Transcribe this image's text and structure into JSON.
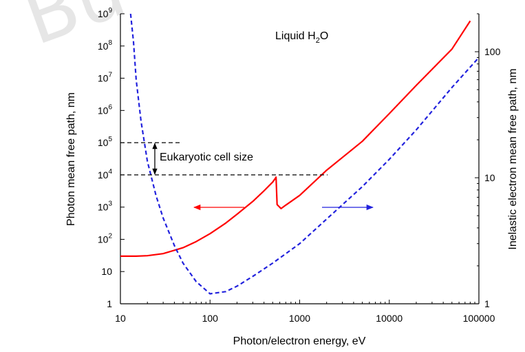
{
  "watermark": "Bu",
  "chart_data": {
    "type": "line",
    "title": "Liquid H₂O",
    "title_base": "Liquid H",
    "title_sub": "2",
    "title_tail": "O",
    "xlabel": "Photon/electron energy, eV",
    "ylabel_left": "Photon mean free path, nm",
    "ylabel_right": "Inelastic electron mean free path, nm",
    "x_scale": "log",
    "xlim": [
      10,
      100000
    ],
    "ylim_left": [
      1,
      1000000000
    ],
    "ylim_right": [
      1,
      200
    ],
    "x_ticks": [
      "10",
      "100",
      "1000",
      "10000",
      "100000"
    ],
    "x_tick_values": [
      10,
      100,
      1000,
      10000,
      100000
    ],
    "y_left_ticks": [
      {
        "v": 1,
        "b": "1",
        "e": ""
      },
      {
        "v": 10,
        "b": "10",
        "e": ""
      },
      {
        "v": 100,
        "b": "10",
        "e": "2"
      },
      {
        "v": 1000,
        "b": "10",
        "e": "3"
      },
      {
        "v": 10000,
        "b": "10",
        "e": "4"
      },
      {
        "v": 100000,
        "b": "10",
        "e": "5"
      },
      {
        "v": 1000000,
        "b": "10",
        "e": "6"
      },
      {
        "v": 10000000,
        "b": "10",
        "e": "7"
      },
      {
        "v": 100000000,
        "b": "10",
        "e": "8"
      },
      {
        "v": 1000000000,
        "b": "10",
        "e": "9"
      }
    ],
    "y_right_ticks": [
      {
        "v": 1,
        "label": "1"
      },
      {
        "v": 10,
        "label": "10"
      },
      {
        "v": 100,
        "label": "100"
      }
    ],
    "annotation": "Eukaryotic cell size",
    "cell_size_range": [
      10000,
      100000
    ],
    "series": [
      {
        "axis": "left",
        "color": "#ff0000",
        "style": "solid",
        "x": [
          10,
          15,
          20,
          30,
          50,
          70,
          100,
          150,
          200,
          300,
          400,
          500,
          530,
          545,
          560,
          620,
          700,
          1000,
          2000,
          5000,
          10000,
          20000,
          50000,
          80000
        ],
        "y": [
          30,
          30,
          31,
          36,
          55,
          85,
          150,
          320,
          600,
          1500,
          3200,
          6000,
          7500,
          8500,
          1200,
          900,
          1150,
          2300,
          14000,
          110000,
          800000,
          6000000,
          80000000,
          600000000
        ]
      },
      {
        "axis": "right",
        "color": "#2222dd",
        "style": "dashed",
        "x": [
          13,
          14,
          15,
          17,
          20,
          25,
          30,
          40,
          50,
          70,
          100,
          150,
          200,
          300,
          500,
          1000,
          2000,
          5000,
          10000,
          20000,
          50000,
          100000
        ],
        "y": [
          200,
          120,
          60,
          28,
          13.5,
          7.2,
          4.8,
          2.9,
          2.1,
          1.5,
          1.2,
          1.25,
          1.38,
          1.65,
          2.1,
          3.0,
          4.7,
          8.5,
          14,
          24,
          52,
          90
        ]
      }
    ]
  }
}
